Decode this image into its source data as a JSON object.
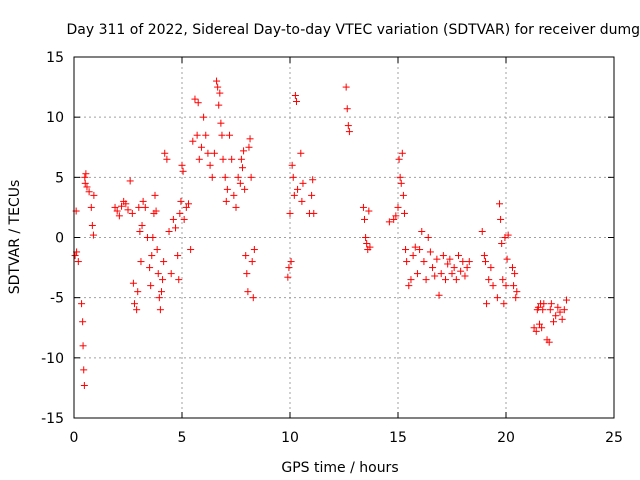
{
  "chart_data": {
    "type": "scatter",
    "title": "Day 311 of 2022, Sidereal Day-to-day VTEC variation (SDTVAR) for receiver dumg",
    "xlabel": "GPS time / hours",
    "ylabel": "SDTVAR / TECUs",
    "xlim": [
      0,
      25
    ],
    "ylim": [
      -15,
      15
    ],
    "xticks": [
      "0",
      "5",
      "10",
      "15",
      "20",
      "25"
    ],
    "yticks": [
      "-15",
      "-10",
      "-5",
      "0",
      "5",
      "10",
      "15"
    ],
    "grid": true,
    "marker": "+",
    "color": "#ff0000",
    "series": [
      {
        "name": "SDTVAR",
        "x": [
          0.05,
          0.1,
          0.12,
          0.2,
          0.35,
          0.4,
          0.42,
          0.45,
          0.48,
          0.5,
          0.52,
          0.55,
          0.6,
          0.7,
          0.8,
          0.85,
          0.9,
          0.92,
          1.9,
          2.0,
          2.1,
          2.2,
          2.3,
          2.4,
          2.5,
          2.6,
          2.7,
          2.75,
          2.8,
          2.9,
          2.95,
          3.0,
          3.05,
          3.1,
          3.15,
          3.2,
          3.3,
          3.4,
          3.5,
          3.55,
          3.6,
          3.65,
          3.7,
          3.75,
          3.8,
          3.85,
          3.9,
          3.95,
          4.0,
          4.05,
          4.1,
          4.15,
          4.2,
          4.3,
          4.4,
          4.5,
          4.6,
          4.7,
          4.8,
          4.85,
          4.9,
          4.95,
          5.0,
          5.05,
          5.1,
          5.2,
          5.3,
          5.4,
          5.5,
          5.6,
          5.7,
          5.75,
          5.8,
          5.9,
          6.0,
          6.1,
          6.2,
          6.3,
          6.4,
          6.5,
          6.6,
          6.65,
          6.7,
          6.75,
          6.8,
          6.85,
          6.9,
          7.0,
          7.05,
          7.1,
          7.2,
          7.3,
          7.4,
          7.5,
          7.6,
          7.7,
          7.75,
          7.8,
          7.85,
          7.9,
          7.95,
          8.0,
          8.05,
          8.1,
          8.15,
          8.2,
          8.25,
          8.3,
          8.35,
          9.9,
          9.95,
          10.0,
          10.05,
          10.1,
          10.15,
          10.2,
          10.25,
          10.3,
          10.35,
          10.5,
          10.55,
          10.6,
          10.9,
          11.0,
          11.05,
          11.1,
          12.6,
          12.65,
          12.7,
          12.75,
          13.4,
          13.45,
          13.5,
          13.55,
          13.6,
          13.65,
          13.7,
          14.6,
          14.8,
          14.9,
          15.0,
          15.05,
          15.1,
          15.15,
          15.2,
          15.25,
          15.3,
          15.35,
          15.4,
          15.5,
          15.6,
          15.7,
          15.8,
          15.9,
          16.0,
          16.1,
          16.2,
          16.3,
          16.4,
          16.5,
          16.6,
          16.7,
          16.8,
          16.9,
          17.0,
          17.1,
          17.2,
          17.3,
          17.4,
          17.5,
          17.6,
          17.7,
          17.8,
          17.9,
          18.0,
          18.1,
          18.2,
          18.3,
          18.9,
          19.0,
          19.05,
          19.1,
          19.2,
          19.3,
          19.4,
          19.6,
          19.7,
          19.75,
          19.8,
          19.85,
          19.9,
          19.95,
          20.0,
          20.05,
          20.1,
          20.3,
          20.35,
          20.4,
          20.45,
          20.5,
          21.3,
          21.4,
          21.45,
          21.5,
          21.55,
          21.6,
          21.65,
          21.7,
          21.75,
          21.9,
          22.0,
          22.05,
          22.1,
          22.2,
          22.3,
          22.4,
          22.5,
          22.6,
          22.7,
          22.8
        ],
        "y": [
          -1.5,
          2.2,
          -1.2,
          -2.0,
          -5.5,
          -7.0,
          -9.0,
          -11.0,
          -12.3,
          5.0,
          4.5,
          5.3,
          4.2,
          3.8,
          2.5,
          1.0,
          0.2,
          3.5,
          2.5,
          2.2,
          1.8,
          2.6,
          3.0,
          2.8,
          2.3,
          4.7,
          2.0,
          -3.8,
          -5.5,
          -6.0,
          -4.5,
          2.5,
          0.5,
          -2.0,
          1.0,
          3.0,
          2.5,
          0.0,
          -2.5,
          -4.0,
          -1.5,
          0.0,
          2.0,
          3.5,
          2.2,
          -1.0,
          -3.0,
          -5.0,
          -6.0,
          -4.5,
          -3.5,
          -2.0,
          7.0,
          6.5,
          0.5,
          -3.0,
          1.5,
          0.8,
          -1.5,
          -3.5,
          2.0,
          3.0,
          6.0,
          5.5,
          1.5,
          2.5,
          2.8,
          -1.0,
          8.0,
          11.5,
          8.5,
          11.2,
          6.5,
          7.5,
          10.0,
          8.5,
          7.0,
          6.0,
          5.0,
          7.0,
          13.0,
          12.5,
          11.0,
          12.0,
          9.5,
          8.5,
          6.5,
          5.0,
          3.0,
          4.0,
          8.5,
          6.5,
          3.5,
          2.5,
          5.0,
          4.5,
          6.5,
          5.8,
          7.2,
          4.0,
          -1.5,
          -3.0,
          -4.5,
          7.5,
          8.2,
          5.0,
          -2.0,
          -5.0,
          -1.0,
          -3.3,
          -2.5,
          2.0,
          -2.0,
          6.0,
          5.0,
          3.5,
          11.8,
          11.3,
          4.0,
          7.0,
          3.0,
          4.5,
          2.0,
          3.5,
          4.8,
          2.0,
          12.5,
          10.7,
          9.3,
          8.8,
          2.5,
          1.5,
          0.0,
          -0.5,
          -1.0,
          2.2,
          -0.8,
          1.3,
          1.5,
          1.8,
          2.5,
          6.5,
          5.0,
          4.5,
          7.0,
          3.5,
          2.0,
          -1.0,
          -2.0,
          -4.0,
          -3.5,
          -1.5,
          -0.8,
          -3.0,
          -1.0,
          0.5,
          -2.0,
          -3.5,
          0.0,
          -1.2,
          -2.5,
          -3.2,
          -1.8,
          -4.8,
          -3.0,
          -1.5,
          -3.5,
          -2.2,
          -1.8,
          -3.0,
          -2.5,
          -3.5,
          -1.5,
          -2.8,
          -2.0,
          -3.2,
          -2.5,
          -2.0,
          0.5,
          -1.5,
          -2.0,
          -5.5,
          -3.5,
          -2.5,
          -4.0,
          -5.0,
          2.8,
          1.5,
          -0.5,
          -3.5,
          -5.5,
          0.0,
          -4.0,
          -1.8,
          0.2,
          -2.5,
          -4.0,
          -3.0,
          -5.0,
          -4.5,
          -7.5,
          -7.8,
          -6.0,
          -5.8,
          -7.2,
          -5.5,
          -7.5,
          -6.0,
          -5.5,
          -8.5,
          -8.7,
          -6.0,
          -5.5,
          -7.0,
          -6.5,
          -5.8,
          -6.2,
          -6.8,
          -6.0,
          -5.2
        ]
      }
    ]
  }
}
